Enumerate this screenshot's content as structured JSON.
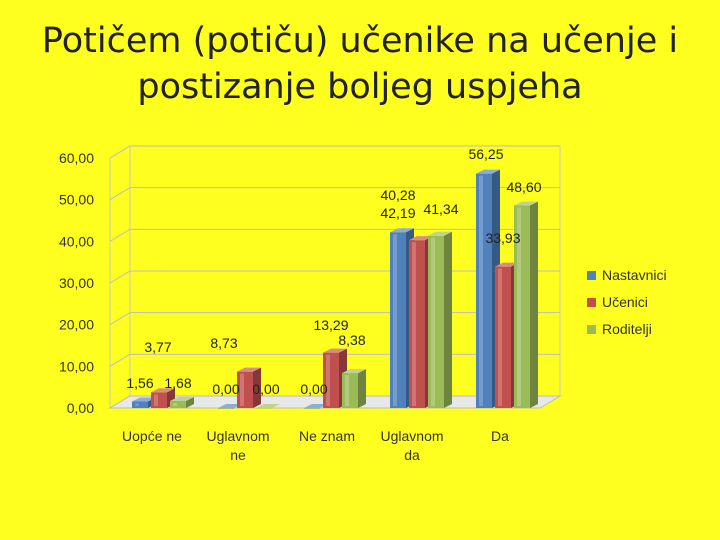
{
  "slide": {
    "title_line1": "Potičem (potiču) učenike na učenje i",
    "title_line2": "postizanje boljeg uspjeha"
  },
  "chart_data": {
    "type": "bar",
    "title": "Potičem (potiču) učenike na učenje i postizanje boljeg uspjeha",
    "categories": [
      "Uopće ne",
      "Uglavnom ne",
      "Ne znam",
      "Uglavnom da",
      "Da"
    ],
    "category_lines": [
      [
        "Uopće ne"
      ],
      [
        "Uglavnom",
        "ne"
      ],
      [
        "Ne znam"
      ],
      [
        "Uglavnom",
        "da"
      ],
      [
        "Da"
      ]
    ],
    "series": [
      {
        "name": "Nastavnici",
        "color": "#4F81BD",
        "values": [
          1.56,
          0.0,
          0.0,
          42.19,
          56.25
        ],
        "labels": [
          "1,56",
          "0,00",
          "0,00",
          "42,19",
          "56,25"
        ]
      },
      {
        "name": "Učenici",
        "color": "#C0504D",
        "values": [
          3.77,
          8.73,
          13.29,
          40.28,
          33.93
        ],
        "labels": [
          "3,77",
          "8,73",
          "13,29",
          "40,28",
          "33,93"
        ]
      },
      {
        "name": "Roditelji",
        "color": "#9BBB59",
        "values": [
          1.68,
          0.0,
          8.38,
          41.34,
          48.6
        ],
        "labels": [
          "1,68",
          "0,00",
          "8,38",
          "41,34",
          "48,60"
        ]
      }
    ],
    "ylim": [
      0,
      60
    ],
    "yticks": [
      "0,00",
      "10,00",
      "20,00",
      "30,00",
      "40,00",
      "50,00",
      "60,00"
    ],
    "grid": true,
    "legend": "right",
    "xlabel": "",
    "ylabel": ""
  }
}
